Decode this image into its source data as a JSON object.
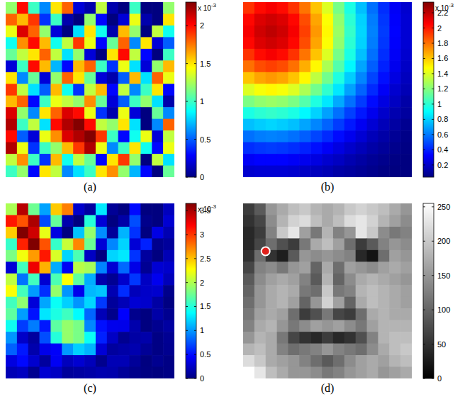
{
  "chart_data": [
    {
      "type": "heatmap",
      "label": "(a)",
      "color": "jet",
      "colorbar": {
        "lim": [
          0,
          2.31
        ],
        "ticks": [
          0,
          0.5,
          1,
          1.5,
          2
        ],
        "multiplier": {
          "base": "x 10",
          "exponent": "-3"
        }
      },
      "cells": [
        [
          1.2,
          2.0,
          1.0,
          0.6,
          1.5,
          1.8,
          0.2,
          0.1,
          1.3,
          0.1,
          0.0,
          1.0,
          0.0,
          0.0,
          1.2
        ],
        [
          1.8,
          1.6,
          1.9,
          0.4,
          1.0,
          0.1,
          0.0,
          1.2,
          0.3,
          0.0,
          0.2,
          1.4,
          0.1,
          0.0,
          1.5
        ],
        [
          1.4,
          2.1,
          1.8,
          1.2,
          0.2,
          0.0,
          0.8,
          1.5,
          0.9,
          0.1,
          1.6,
          1.2,
          0.0,
          1.3,
          0.9
        ],
        [
          0.9,
          1.7,
          2.0,
          1.6,
          0.9,
          1.3,
          1.9,
          1.4,
          0.3,
          1.1,
          1.8,
          0.6,
          1.5,
          0.2,
          0.5
        ],
        [
          1.1,
          1.3,
          1.5,
          1.8,
          1.3,
          0.8,
          1.2,
          0.2,
          0.0,
          1.5,
          2.0,
          1.3,
          0.3,
          0.0,
          1.0
        ],
        [
          0.2,
          1.0,
          2.0,
          1.6,
          0.7,
          0.3,
          1.6,
          1.8,
          1.0,
          0.4,
          1.4,
          0.8,
          0.2,
          1.2,
          1.6
        ],
        [
          1.5,
          0.6,
          1.1,
          0.2,
          1.2,
          1.8,
          1.5,
          1.1,
          0.2,
          0.1,
          0.5,
          1.6,
          0.8,
          1.8,
          1.4
        ],
        [
          1.9,
          1.3,
          0.8,
          0.5,
          1.6,
          0.9,
          0.4,
          1.3,
          1.6,
          0.3,
          1.3,
          0.6,
          1.0,
          1.5,
          0.3
        ],
        [
          1.6,
          1.8,
          0.3,
          1.0,
          1.4,
          1.3,
          1.2,
          1.7,
          1.1,
          0.2,
          0.5,
          1.0,
          1.2,
          0.8,
          0.1
        ],
        [
          2.1,
          1.2,
          0.6,
          1.5,
          1.8,
          2.1,
          2.0,
          1.4,
          0.4,
          0.1,
          1.4,
          0.2,
          0.0,
          1.1,
          0.6
        ],
        [
          2.2,
          1.0,
          1.3,
          0.8,
          2.0,
          2.2,
          2.3,
          2.0,
          1.3,
          1.2,
          1.5,
          0.8,
          0.0,
          0.6,
          1.8
        ],
        [
          2.0,
          0.5,
          0.2,
          1.4,
          1.7,
          2.1,
          2.2,
          2.3,
          1.9,
          1.0,
          0.3,
          0.9,
          1.4,
          0.2,
          1.3
        ],
        [
          2.2,
          1.4,
          0.4,
          1.0,
          1.2,
          1.6,
          1.9,
          2.2,
          1.4,
          0.6,
          1.0,
          1.5,
          0.9,
          0.3,
          1.4
        ],
        [
          1.3,
          1.7,
          1.0,
          0.4,
          1.6,
          0.9,
          1.3,
          1.1,
          0.3,
          1.5,
          1.9,
          1.2,
          0.0,
          1.3,
          0.8
        ],
        [
          1.0,
          1.2,
          0.3,
          1.5,
          1.3,
          0.6,
          0.8,
          1.0,
          1.5,
          1.7,
          1.2,
          0.7,
          0.3,
          0.0,
          1.1
        ]
      ]
    },
    {
      "type": "heatmap",
      "label": "(b)",
      "color": "jet",
      "colorbar": {
        "lim": [
          0.04,
          2.34
        ],
        "ticks": [
          0.2,
          0.4,
          0.6,
          0.8,
          1,
          1.2,
          1.4,
          1.6,
          1.8,
          2,
          2.2
        ],
        "multiplier": {
          "base": "x 10",
          "exponent": "-3"
        }
      },
      "cells": [
        [
          1.94,
          2.03,
          2.07,
          2.03,
          1.94,
          1.79,
          1.61,
          1.4,
          1.17,
          0.96,
          0.76,
          0.58,
          0.43,
          0.31,
          0.22
        ],
        [
          2.04,
          2.13,
          2.16,
          2.13,
          2.04,
          1.88,
          1.68,
          1.47,
          1.23,
          1.0,
          0.8,
          0.61,
          0.45,
          0.32,
          0.23
        ],
        [
          2.07,
          2.16,
          2.2,
          2.16,
          2.07,
          1.91,
          1.71,
          1.49,
          1.25,
          1.02,
          0.81,
          0.62,
          0.46,
          0.33,
          0.23
        ],
        [
          2.04,
          2.13,
          2.16,
          2.13,
          2.04,
          1.88,
          1.68,
          1.47,
          1.23,
          1.0,
          0.8,
          0.61,
          0.45,
          0.32,
          0.23
        ],
        [
          1.94,
          2.03,
          2.07,
          2.03,
          1.94,
          1.79,
          1.61,
          1.4,
          1.17,
          0.96,
          0.76,
          0.58,
          0.43,
          0.31,
          0.22
        ],
        [
          1.8,
          1.88,
          1.91,
          1.88,
          1.8,
          1.66,
          1.49,
          1.29,
          1.09,
          0.89,
          0.7,
          0.54,
          0.4,
          0.29,
          0.2
        ],
        [
          1.61,
          1.68,
          1.71,
          1.68,
          1.61,
          1.49,
          1.33,
          1.16,
          0.97,
          0.79,
          0.63,
          0.48,
          0.36,
          0.26,
          0.18
        ],
        [
          1.4,
          1.46,
          1.49,
          1.46,
          1.4,
          1.29,
          1.16,
          1.01,
          0.85,
          0.69,
          0.55,
          0.42,
          0.31,
          0.22,
          0.16
        ],
        [
          1.18,
          1.23,
          1.25,
          1.23,
          1.18,
          1.09,
          0.97,
          0.85,
          0.71,
          0.58,
          0.46,
          0.35,
          0.26,
          0.19,
          0.13
        ],
        [
          0.96,
          1.0,
          1.02,
          1.0,
          0.96,
          0.89,
          0.8,
          0.69,
          0.58,
          0.47,
          0.38,
          0.29,
          0.21,
          0.15,
          0.11
        ],
        [
          0.76,
          0.79,
          0.81,
          0.79,
          0.76,
          0.7,
          0.63,
          0.55,
          0.46,
          0.38,
          0.3,
          0.23,
          0.17,
          0.12,
          0.08
        ],
        [
          0.58,
          0.61,
          0.62,
          0.61,
          0.58,
          0.54,
          0.48,
          0.42,
          0.35,
          0.29,
          0.23,
          0.17,
          0.13,
          0.09,
          0.06
        ],
        [
          0.43,
          0.45,
          0.46,
          0.45,
          0.43,
          0.4,
          0.36,
          0.31,
          0.26,
          0.21,
          0.17,
          0.13,
          0.1,
          0.07,
          0.05
        ],
        [
          0.31,
          0.33,
          0.33,
          0.33,
          0.31,
          0.29,
          0.26,
          0.22,
          0.19,
          0.15,
          0.12,
          0.09,
          0.07,
          0.05,
          0.03
        ],
        [
          0.22,
          0.23,
          0.23,
          0.23,
          0.22,
          0.2,
          0.18,
          0.16,
          0.13,
          0.11,
          0.09,
          0.07,
          0.05,
          0.03,
          0.02
        ]
      ]
    },
    {
      "type": "heatmap",
      "label": "(c)",
      "color": "jet",
      "colorbar": {
        "lim": [
          0,
          3.65
        ],
        "ticks": [
          0,
          0.5,
          1,
          1.5,
          2,
          2.5,
          3,
          3.5
        ],
        "multiplier": {
          "base": "x 10",
          "exponent": "-3"
        }
      },
      "cells": [
        [
          1.98,
          3.45,
          1.76,
          1.04,
          2.47,
          2.74,
          0.27,
          0.12,
          1.29,
          0.08,
          0.0,
          0.49,
          0.0,
          0.0,
          0.22
        ],
        [
          3.12,
          2.9,
          3.49,
          0.72,
          1.73,
          0.16,
          0.0,
          1.5,
          0.31,
          0.0,
          0.14,
          0.73,
          0.04,
          0.0,
          0.29
        ],
        [
          2.46,
          3.7,
          3.37,
          2.2,
          0.35,
          0.0,
          1.16,
          1.9,
          0.96,
          0.09,
          1.1,
          0.63,
          0.0,
          0.36,
          0.18
        ],
        [
          1.56,
          3.08,
          3.67,
          2.9,
          1.56,
          2.08,
          2.71,
          1.75,
          0.31,
          0.94,
          1.22,
          0.31,
          0.57,
          0.05,
          0.1
        ],
        [
          1.81,
          2.24,
          2.64,
          3.11,
          2.14,
          1.22,
          1.64,
          0.24,
          0.0,
          1.22,
          1.29,
          0.64,
          0.11,
          0.0,
          0.19
        ],
        [
          0.31,
          1.6,
          3.25,
          2.56,
          1.07,
          0.42,
          2.03,
          1.97,
          0.93,
          0.3,
          0.83,
          0.37,
          0.07,
          0.3,
          0.27
        ],
        [
          2.05,
          0.86,
          1.6,
          0.29,
          1.64,
          2.28,
          1.7,
          1.08,
          0.16,
          0.07,
          0.27,
          0.65,
          0.24,
          0.4,
          0.21
        ],
        [
          2.26,
          1.61,
          1.01,
          0.62,
          1.9,
          0.99,
          0.39,
          1.12,
          1.16,
          0.18,
          0.61,
          0.21,
          0.26,
          0.28,
          0.04
        ],
        [
          1.6,
          1.88,
          0.32,
          1.05,
          1.4,
          1.2,
          0.99,
          1.23,
          0.66,
          0.1,
          0.2,
          0.3,
          0.27,
          0.13,
          0.01
        ],
        [
          1.71,
          1.02,
          0.52,
          1.28,
          1.47,
          1.59,
          1.36,
          0.82,
          0.2,
          0.04,
          0.45,
          0.05,
          0.0,
          0.14,
          0.06
        ],
        [
          1.42,
          0.67,
          0.9,
          0.54,
          1.7,
          1.9,
          1.8,
          0.94,
          0.51,
          0.39,
          0.38,
          0.16,
          0.0,
          0.06,
          0.12
        ],
        [
          0.99,
          0.26,
          0.11,
          0.73,
          1.5,
          1.9,
          1.8,
          1.4,
          0.57,
          0.25,
          0.06,
          0.13,
          0.15,
          0.02,
          0.07
        ],
        [
          0.8,
          0.54,
          0.16,
          0.38,
          0.44,
          1.0,
          1.2,
          1.1,
          0.31,
          0.11,
          0.14,
          0.17,
          0.08,
          0.02,
          0.06
        ],
        [
          0.34,
          0.48,
          0.28,
          0.11,
          0.42,
          0.22,
          0.29,
          0.21,
          0.05,
          0.19,
          0.19,
          0.09,
          0.0,
          0.06,
          0.02
        ],
        [
          0.19,
          0.23,
          0.06,
          0.29,
          0.24,
          0.1,
          0.12,
          0.14,
          0.17,
          0.16,
          0.09,
          0.04,
          0.01,
          0.0,
          0.02
        ]
      ]
    },
    {
      "type": "heatmap",
      "label": "(d)",
      "color": "gray",
      "colorbar": {
        "lim": [
          0,
          255
        ],
        "ticks": [
          0,
          50,
          100,
          150,
          200,
          250
        ]
      },
      "point": {
        "x": 1.5,
        "y": 3.6
      },
      "cells": [
        [
          60,
          90,
          150,
          170,
          190,
          200,
          180,
          170,
          180,
          200,
          210,
          200,
          190,
          170,
          150
        ],
        [
          50,
          70,
          140,
          180,
          210,
          220,
          190,
          170,
          190,
          220,
          230,
          210,
          180,
          160,
          140
        ],
        [
          40,
          60,
          130,
          200,
          230,
          160,
          120,
          180,
          130,
          150,
          230,
          200,
          140,
          120,
          130
        ],
        [
          40,
          70,
          110,
          80,
          60,
          120,
          170,
          190,
          160,
          110,
          60,
          90,
          130,
          150,
          140
        ],
        [
          50,
          110,
          50,
          30,
          90,
          150,
          140,
          150,
          140,
          130,
          40,
          20,
          110,
          160,
          150
        ],
        [
          70,
          130,
          140,
          120,
          150,
          160,
          100,
          170,
          110,
          160,
          150,
          140,
          160,
          170,
          160
        ],
        [
          90,
          140,
          160,
          170,
          160,
          130,
          90,
          180,
          100,
          140,
          170,
          180,
          170,
          160,
          150
        ],
        [
          100,
          150,
          170,
          180,
          170,
          120,
          110,
          200,
          120,
          130,
          180,
          190,
          180,
          170,
          160
        ],
        [
          110,
          150,
          170,
          180,
          160,
          100,
          150,
          210,
          160,
          100,
          170,
          190,
          180,
          170,
          160
        ],
        [
          120,
          160,
          170,
          160,
          110,
          60,
          80,
          120,
          70,
          60,
          110,
          170,
          180,
          170,
          170
        ],
        [
          130,
          170,
          180,
          150,
          120,
          140,
          160,
          150,
          160,
          140,
          120,
          160,
          180,
          180,
          180
        ],
        [
          150,
          180,
          170,
          120,
          70,
          50,
          40,
          60,
          40,
          50,
          80,
          130,
          180,
          190,
          190
        ],
        [
          180,
          190,
          170,
          130,
          110,
          120,
          130,
          150,
          130,
          120,
          110,
          140,
          170,
          190,
          200
        ],
        [
          220,
          200,
          170,
          160,
          150,
          130,
          110,
          90,
          110,
          140,
          160,
          170,
          160,
          180,
          190
        ],
        [
          255,
          230,
          190,
          170,
          150,
          150,
          140,
          120,
          130,
          150,
          160,
          170,
          150,
          160,
          170
        ]
      ]
    }
  ]
}
